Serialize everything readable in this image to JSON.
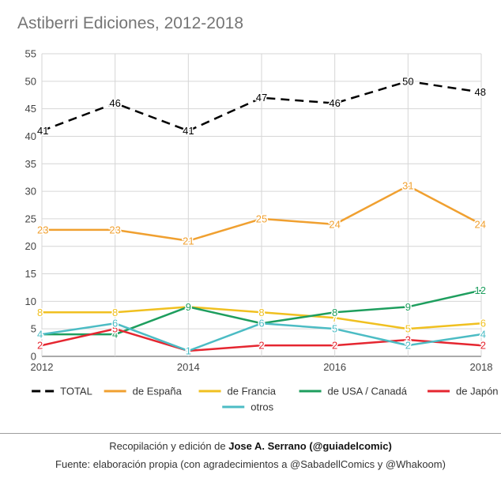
{
  "chart_data": {
    "type": "line",
    "title": "Astiberri Ediciones, 2012-2018",
    "xlabel": "",
    "ylabel": "",
    "x": [
      2012,
      2013,
      2014,
      2015,
      2016,
      2017,
      2018
    ],
    "x_ticks": [
      "2012",
      "2014",
      "2016",
      "2018"
    ],
    "y_ticks": [
      "0",
      "5",
      "10",
      "15",
      "20",
      "25",
      "30",
      "35",
      "40",
      "45",
      "50",
      "55"
    ],
    "xlim": [
      2012,
      2018
    ],
    "ylim": [
      0,
      55
    ],
    "grid": true,
    "legend_position": "bottom",
    "data_labels": true,
    "series": [
      {
        "name": "TOTAL",
        "color": "#000000",
        "dashed": true,
        "values": [
          41,
          46,
          41,
          47,
          46,
          50,
          48
        ]
      },
      {
        "name": "de España",
        "color": "#f0a030",
        "dashed": false,
        "values": [
          23,
          23,
          21,
          25,
          24,
          31,
          24
        ]
      },
      {
        "name": "de Francia",
        "color": "#f0c020",
        "dashed": false,
        "values": [
          8,
          8,
          9,
          8,
          7,
          5,
          6
        ]
      },
      {
        "name": "de USA / Canadá",
        "color": "#1e9e5e",
        "dashed": false,
        "values": [
          4,
          4,
          9,
          6,
          8,
          9,
          12
        ]
      },
      {
        "name": "de Japón",
        "color": "#e52630",
        "dashed": false,
        "values": [
          2,
          5,
          1,
          2,
          2,
          3,
          2
        ]
      },
      {
        "name": "otros",
        "color": "#4cbcc4",
        "dashed": false,
        "values": [
          4,
          6,
          1,
          6,
          5,
          2,
          4
        ]
      }
    ]
  },
  "footer": {
    "line1_prefix": "Recopilación y edición de ",
    "line1_bold": "Jose A. Serrano (@guiadelcomic)",
    "line2": "Fuente: elaboración propia (con agradecimientos a @SabadellComics y @Whakoom)"
  }
}
